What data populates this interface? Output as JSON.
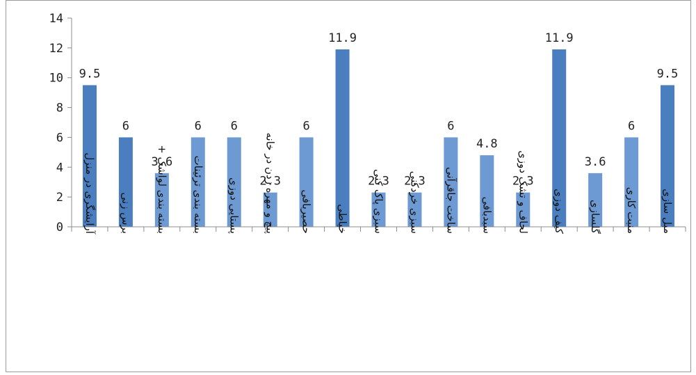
{
  "chart_data": {
    "type": "bar",
    "title": "",
    "xlabel": "",
    "ylabel": "",
    "ylim": [
      0,
      14
    ],
    "yticks": [
      0,
      2,
      4,
      6,
      8,
      10,
      12,
      14
    ],
    "grid": false,
    "legend": "none",
    "categories": [
      "آرایشگری در منزل",
      "برس زنی",
      "بسته بندی لواشک +",
      "بسته بندی ترئینات",
      "پستایی دوزی",
      "پیچ و مهره زدن در خانه",
      "حصیربافی",
      "خیاطی",
      "سبزی پاک کنی",
      "سبزی خردکنی",
      "ساخت جاقرآنی",
      "سبدبافی",
      "لحاف و تشک دوزی",
      "کیف دوزی",
      "گلسازی",
      "منبت کاری",
      "مبل سازی"
    ],
    "values": [
      9.5,
      6,
      3.6,
      6,
      6,
      2.3,
      6,
      11.9,
      2.3,
      2.3,
      6,
      4.8,
      2.3,
      11.9,
      3.6,
      6,
      9.5
    ],
    "data_labels": [
      "9.5",
      "6",
      "3.6",
      "6",
      "6",
      "2.3",
      "6",
      "11.9",
      "2.3",
      "2.3",
      "6",
      "4.8",
      "2.3",
      "11.9",
      "3.6",
      "6",
      "9.5"
    ],
    "colors": {
      "bar_dark": "#4a7ebf",
      "bar_light": "#6d9ad2",
      "axis": "#8c8c8c",
      "frame": "#9a9a9a"
    }
  }
}
